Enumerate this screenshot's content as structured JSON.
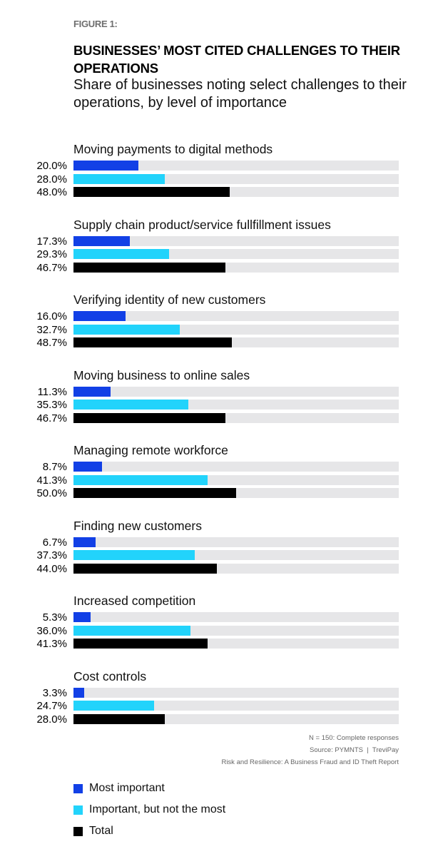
{
  "figure_label": "FIGURE 1:",
  "chart_data": {
    "type": "bar",
    "orientation": "horizontal",
    "title": "BUSINESSES’ MOST CITED CHALLENGES TO THEIR OPERATIONS",
    "subtitle": "Share of businesses noting select challenges to their operations, by level of importance",
    "xlim": [
      0,
      100
    ],
    "grid": false,
    "legend_placement": "bottom-left",
    "categories": [
      "Moving payments to digital methods",
      "Supply chain product/service fullfillment issues",
      "Verifying identity of new customers",
      "Moving business to online sales",
      "Managing remote workforce",
      "Finding new customers",
      "Increased competition",
      "Cost controls"
    ],
    "series": [
      {
        "name": "Most important",
        "color": "#1240e6",
        "values": [
          20.0,
          17.3,
          16.0,
          11.3,
          8.7,
          6.7,
          5.3,
          3.3
        ],
        "labels": [
          "20.0%",
          "17.3%",
          "16.0%",
          "11.3%",
          "8.7%",
          "6.7%",
          "5.3%",
          "3.3%"
        ]
      },
      {
        "name": "Important, but not the most",
        "color": "#22d3fb",
        "values": [
          28.0,
          29.3,
          32.7,
          35.3,
          41.3,
          37.3,
          36.0,
          24.7
        ],
        "labels": [
          "28.0%",
          "29.3%",
          "32.7%",
          "35.3%",
          "41.3%",
          "37.3%",
          "36.0%",
          "24.7%"
        ]
      },
      {
        "name": "Total",
        "color": "#000000",
        "values": [
          48.0,
          46.7,
          48.7,
          46.7,
          50.0,
          44.0,
          41.3,
          28.0
        ],
        "labels": [
          "48.0%",
          "46.7%",
          "48.7%",
          "46.7%",
          "50.0%",
          "44.0%",
          "41.3%",
          "28.0%"
        ]
      }
    ],
    "track_color": "#e6e6e8"
  },
  "notes": [
    "N = 150: Complete responses",
    "Source: PYMNTS  |  TreviPay",
    "Risk and Resilience: A Business Fraud and ID Theft Report"
  ]
}
